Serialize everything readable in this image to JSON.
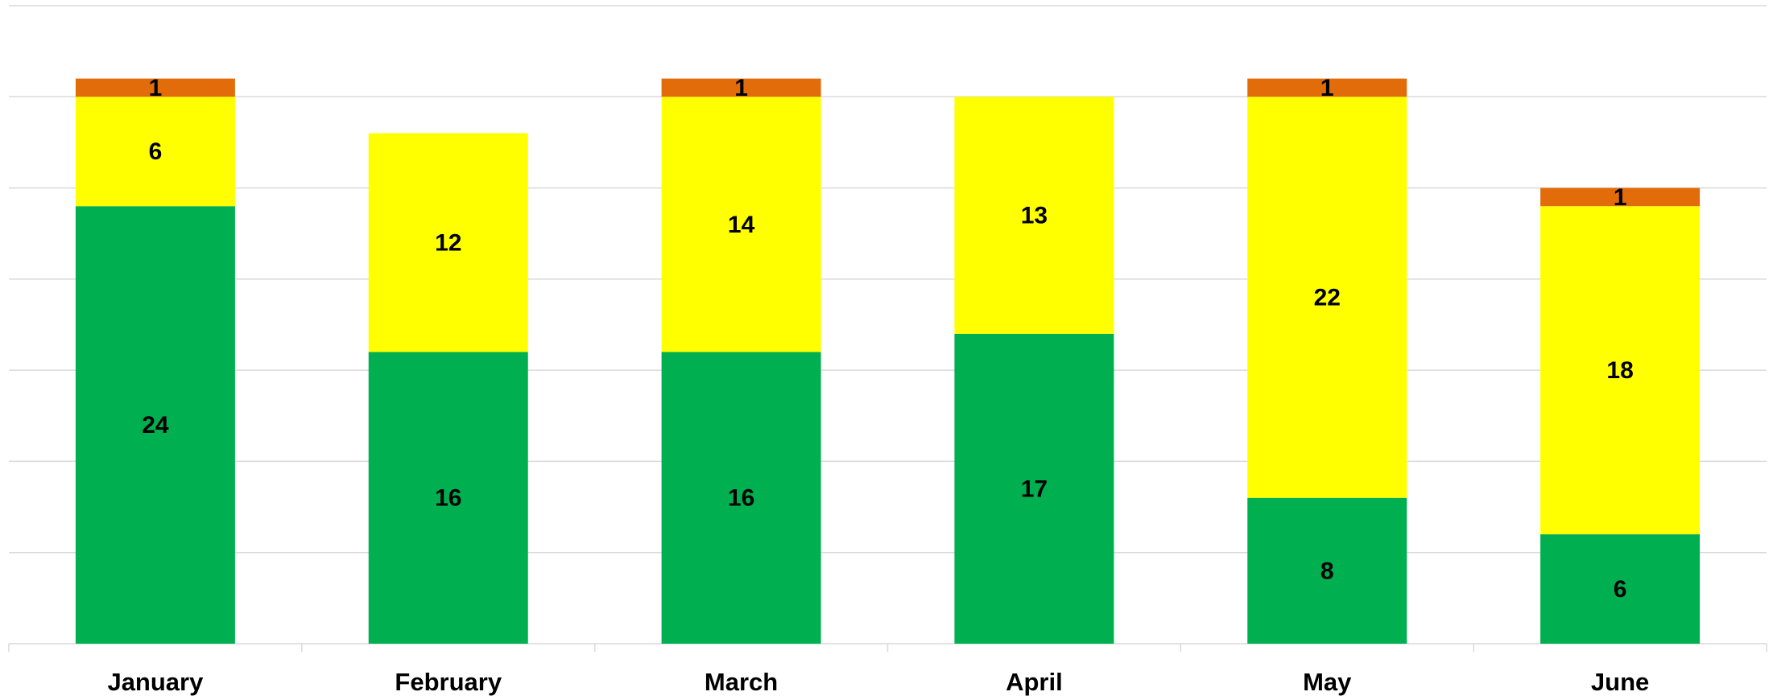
{
  "chart_data": {
    "type": "stacked_bar",
    "categories": [
      "January",
      "February",
      "March",
      "April",
      "May",
      "June"
    ],
    "series": [
      {
        "color": "#00b050",
        "values": [
          24,
          16,
          16,
          17,
          8,
          6
        ]
      },
      {
        "color": "#ffff00",
        "values": [
          6,
          12,
          14,
          13,
          22,
          18
        ]
      },
      {
        "color": "#e36c0a",
        "values": [
          1,
          null,
          1,
          null,
          1,
          1
        ]
      }
    ],
    "ylim": [
      0,
      35
    ],
    "yticks": [
      0,
      5,
      10,
      15,
      20,
      25,
      30,
      35
    ],
    "grid": true
  }
}
